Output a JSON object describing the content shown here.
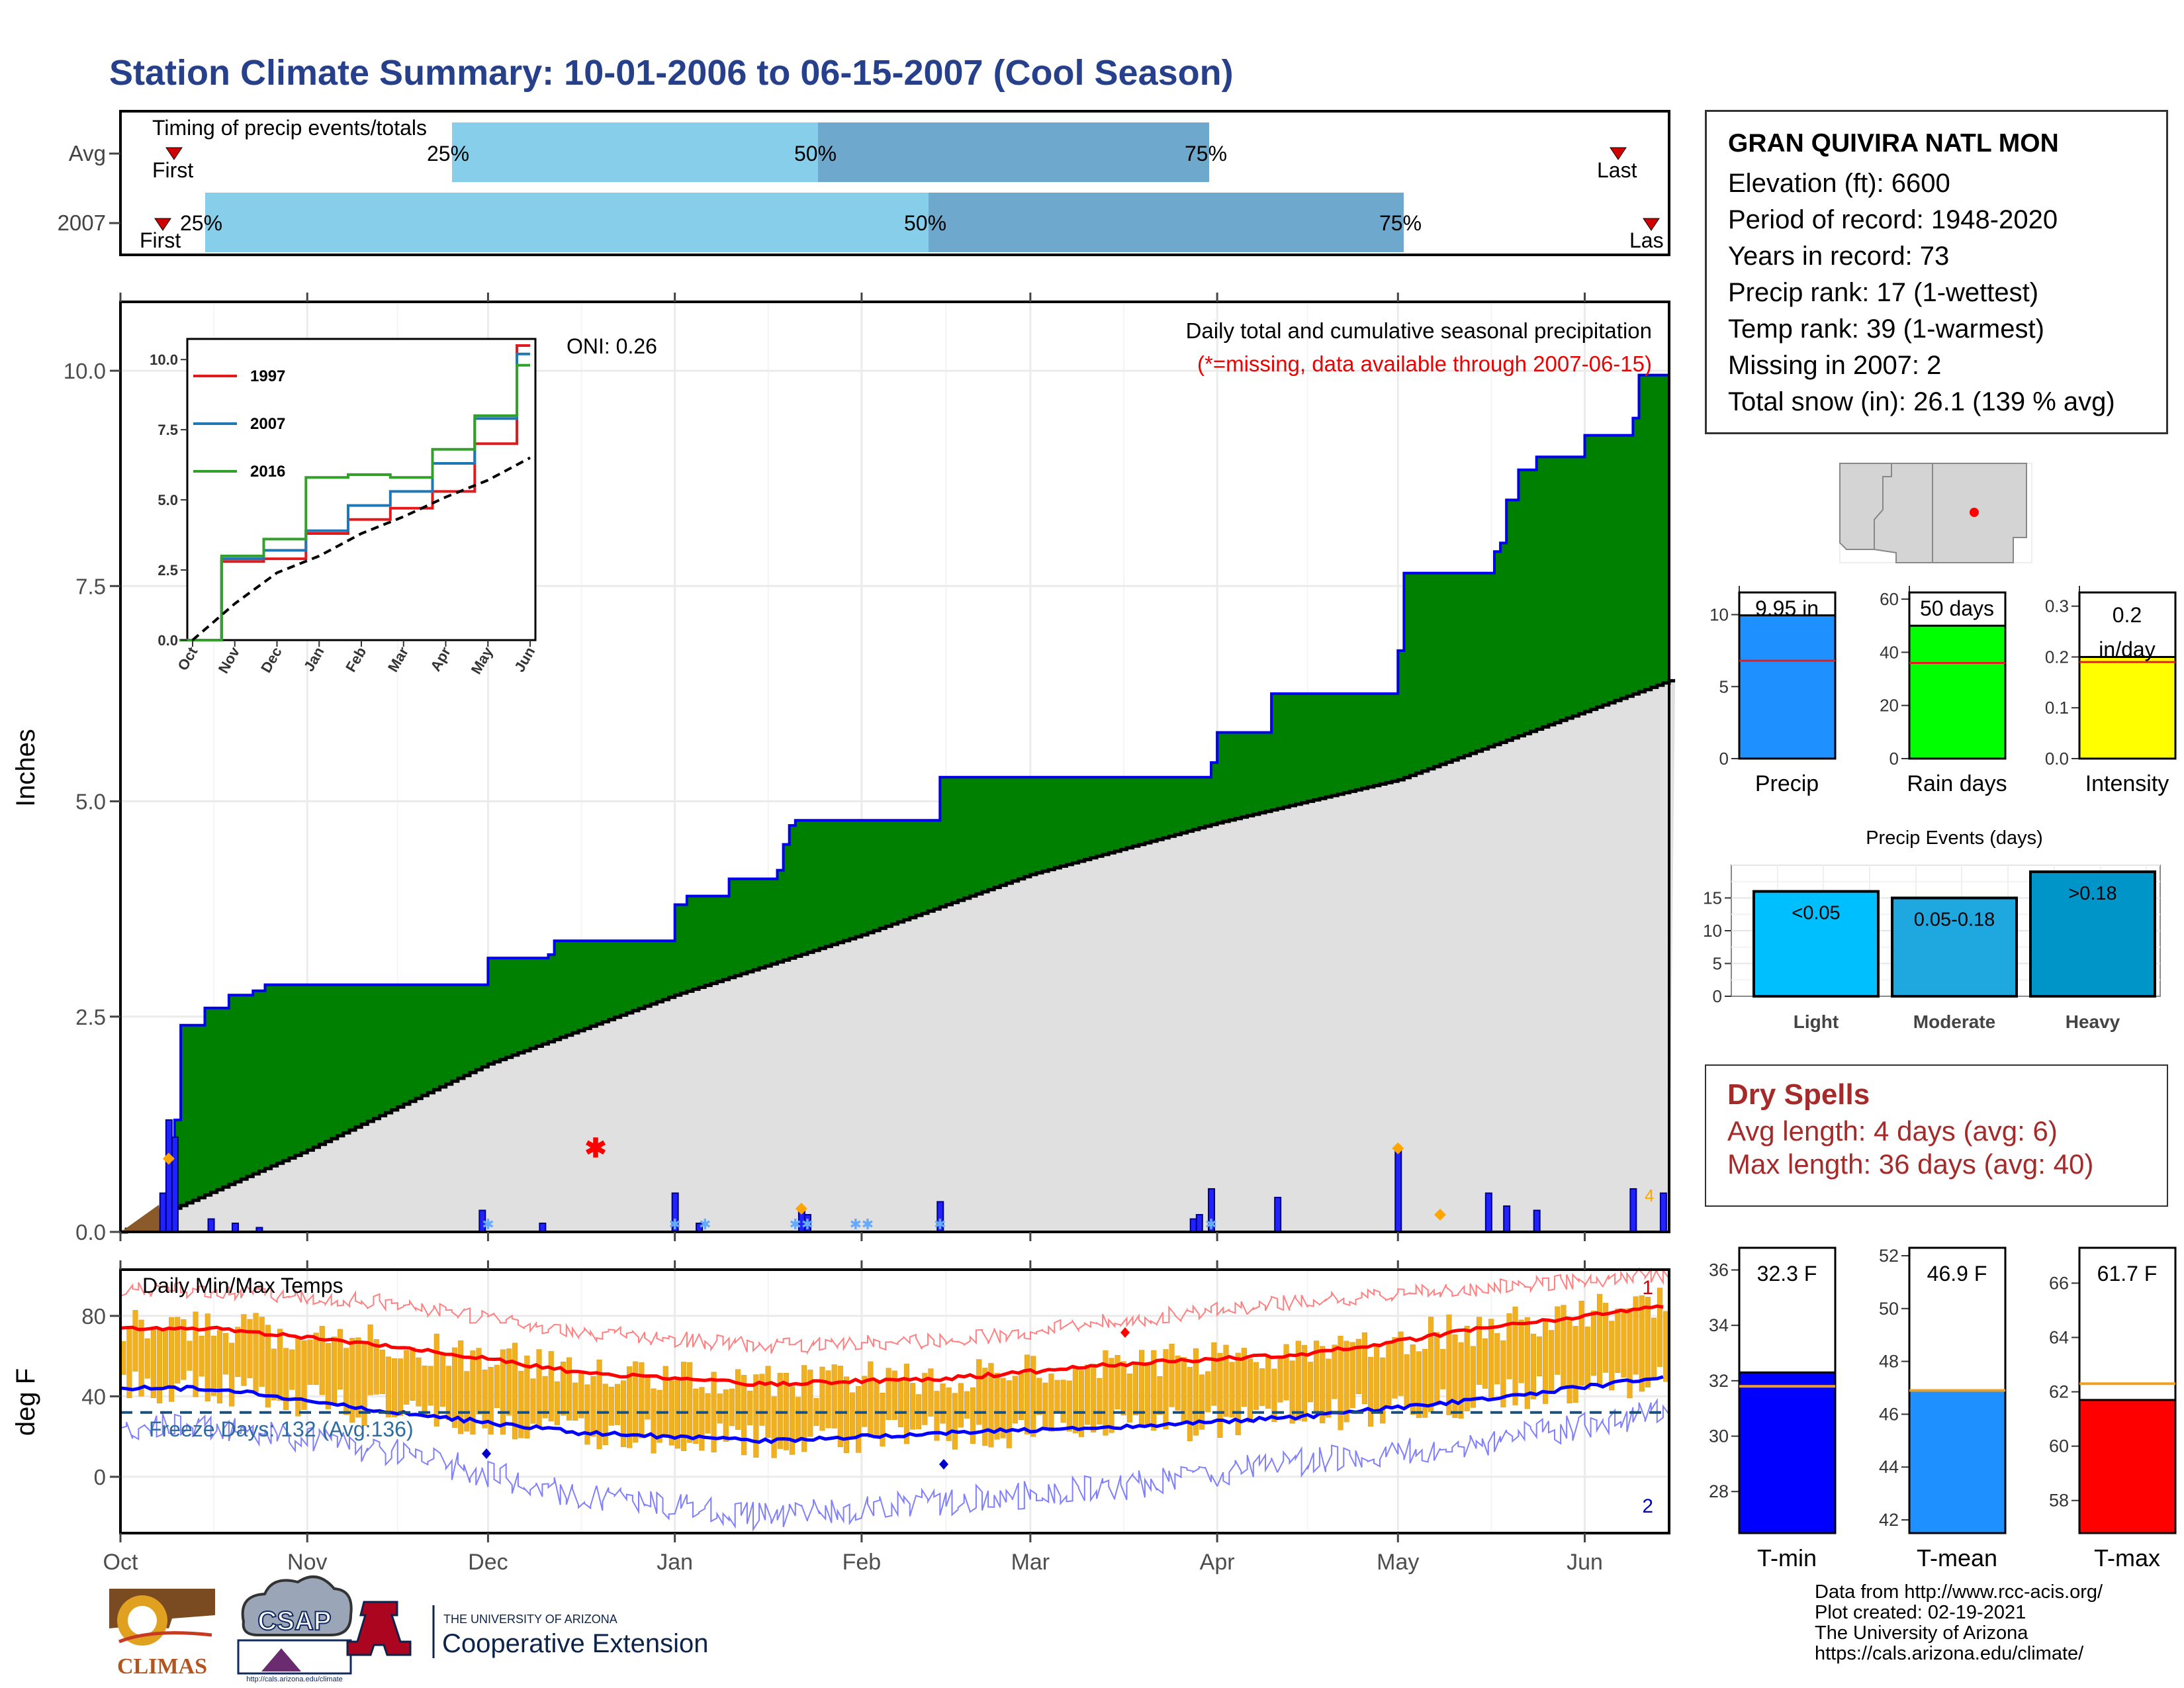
{
  "title": "Station Climate Summary: 10-01-2006 to 06-15-2007 (Cool Season)",
  "timing": {
    "title": "Timing of precip events/totals",
    "rows": [
      {
        "label": "Avg",
        "first_label": "First",
        "last_label": "Last",
        "p25": "25%",
        "p50": "50%",
        "p75": "75%"
      },
      {
        "label": "2007",
        "first_label": "First",
        "last_label": "Las",
        "p25": "25%",
        "p50": "50%",
        "p75": "75%"
      }
    ]
  },
  "main_chart": {
    "ylabel": "Inches",
    "y_ticks": [
      "0.0",
      "2.5",
      "5.0",
      "7.5",
      "10.0"
    ],
    "oni": "ONI: 0.26",
    "legend_line1": "Daily total and cumulative seasonal precipitation",
    "legend_line2": "(*=missing, data available through 2007-06-15)",
    "colors": {
      "cumulative_2007": "#008000",
      "average": "#e0e0e0",
      "daily": "#0000ff",
      "missing": "#ff0000",
      "snow": "#ffa500"
    }
  },
  "inset": {
    "y_ticks": [
      "0.0",
      "2.5",
      "5.0",
      "7.5",
      "10.0"
    ],
    "x_ticks": [
      "Oct",
      "Nov",
      "Dec",
      "Jan",
      "Feb",
      "Mar",
      "Apr",
      "May",
      "Jun"
    ],
    "legend": [
      {
        "name": "1997",
        "color": "#e31a1c"
      },
      {
        "name": "2007",
        "color": "#1f78b4"
      },
      {
        "name": "2016",
        "color": "#33a02c"
      }
    ]
  },
  "temp_chart": {
    "ylabel": "deg F",
    "title": "Daily Min/Max Temps",
    "y_ticks": [
      "0",
      "40",
      "80"
    ],
    "freeze": "Freeze Days: 132 (Avg:136)",
    "corner_top": "1",
    "corner_bottom": "2"
  },
  "x_axis": {
    "months": [
      "Oct",
      "Nov",
      "Dec",
      "Jan",
      "Feb",
      "Mar",
      "Apr",
      "May",
      "Jun"
    ]
  },
  "station": {
    "name": "GRAN QUIVIRA NATL MON",
    "lines": [
      "Elevation (ft): 6600",
      "Period of record: 1948-2020",
      "Years in record: 73",
      "Precip rank: 17 (1-wettest)",
      "Temp rank: 39 (1-warmest)",
      "Missing in 2007: 2",
      "Total snow (in): 26.1 (139 % avg)"
    ]
  },
  "mini_bars": [
    {
      "label": "Precip",
      "value_text": "9.95 in",
      "ticks": [
        "0",
        "5",
        "10"
      ],
      "color": "#1e90ff"
    },
    {
      "label": "Rain days",
      "value_text": "50 days",
      "ticks": [
        "0",
        "20",
        "40",
        "60"
      ],
      "color": "#00ff00"
    },
    {
      "label": "Intensity",
      "value_text_1": "0.2",
      "value_text_2": "in/day",
      "ticks": [
        "0.0",
        "0.1",
        "0.2",
        "0.3"
      ],
      "color": "#ffff00"
    }
  ],
  "events": {
    "title": "Precip Events (days)",
    "bars": [
      {
        "label": "Light",
        "value_text": "<0.05",
        "value": 16,
        "color": "#00bfff"
      },
      {
        "label": "Moderate",
        "value_text": "0.05-0.18",
        "value": 15,
        "color": "#1fa8e0"
      },
      {
        "label": "Heavy",
        "value_text": ">0.18",
        "value": 19,
        "color": "#0095c8"
      }
    ],
    "ticks": [
      "0",
      "5",
      "10",
      "15"
    ]
  },
  "dry_spells": {
    "title": "Dry Spells",
    "line1": "Avg length: 4 days (avg: 6)",
    "line2": "Max length: 36 days (avg: 40)"
  },
  "temp_bars": [
    {
      "label": "T-min",
      "value_text": "32.3 F",
      "ticks": [
        "28",
        "30",
        "32",
        "34",
        "36"
      ],
      "color": "#0000ff"
    },
    {
      "label": "T-mean",
      "value_text": "46.9 F",
      "ticks": [
        "42",
        "44",
        "46",
        "48",
        "50",
        "52"
      ],
      "color": "#1e90ff"
    },
    {
      "label": "T-max",
      "value_text": "61.7 F",
      "ticks": [
        "58",
        "60",
        "62",
        "64",
        "66"
      ],
      "color": "#ff0000"
    }
  ],
  "credits": [
    "Data from http://www.rcc-acis.org/",
    "Plot created: 02-19-2021",
    "The University of Arizona",
    "https://cals.arizona.edu/climate/"
  ],
  "logos": {
    "climas": "CLIMAS",
    "csap": "CSAP",
    "csap_url": "http://cals.arizona.edu/climate",
    "ua_line1": "THE UNIVERSITY OF ARIZONA",
    "ua_line2": "Cooperative Extension",
    "ua_letter": "A"
  },
  "chart_data": [
    {
      "type": "area",
      "title": "Daily total and cumulative seasonal precipitation",
      "ylabel": "Inches",
      "ylim": [
        0,
        10.8
      ],
      "x_start": "2006-10-01",
      "x_end": "2007-06-15",
      "series": [
        {
          "name": "2007",
          "x": [
            "2006-10-01",
            "2006-10-08",
            "2006-10-09",
            "2006-10-10",
            "2006-10-11",
            "2006-10-15",
            "2006-10-19",
            "2006-10-23",
            "2006-10-25",
            "2006-11-30",
            "2006-12-01",
            "2006-12-11",
            "2006-12-12",
            "2006-12-31",
            "2007-01-01",
            "2007-01-03",
            "2007-01-10",
            "2007-01-18",
            "2007-01-19",
            "2007-01-20",
            "2007-01-21",
            "2007-02-13",
            "2007-02-14",
            "2007-03-30",
            "2007-03-31",
            "2007-04-01",
            "2007-04-10",
            "2007-05-01",
            "2007-05-02",
            "2007-05-17",
            "2007-05-18",
            "2007-05-19",
            "2007-05-21",
            "2007-05-24",
            "2007-06-01",
            "2007-06-09",
            "2007-06-10",
            "2007-06-15"
          ],
          "values": [
            0.0,
            0.0,
            0.45,
            1.3,
            2.4,
            2.6,
            2.75,
            2.8,
            2.87,
            2.87,
            3.18,
            3.22,
            3.38,
            3.38,
            3.8,
            3.9,
            4.1,
            4.2,
            4.5,
            4.72,
            4.78,
            4.78,
            5.28,
            5.28,
            5.45,
            5.8,
            6.25,
            6.75,
            7.65,
            7.9,
            8.0,
            8.5,
            8.85,
            9.0,
            9.25,
            9.45,
            9.95,
            9.95
          ]
        },
        {
          "name": "Avg",
          "x": [
            "2006-10-01",
            "2006-11-01",
            "2006-12-01",
            "2007-01-01",
            "2007-02-01",
            "2007-03-01",
            "2007-04-01",
            "2007-05-01",
            "2007-06-15"
          ],
          "values": [
            0.0,
            0.95,
            1.95,
            2.75,
            3.45,
            4.15,
            4.75,
            5.25,
            6.4
          ]
        }
      ]
    },
    {
      "type": "bar",
      "title": "Daily precipitation",
      "x": [
        "2006-10-08",
        "2006-10-09",
        "2006-10-10",
        "2006-10-16",
        "2006-10-20",
        "2006-10-24",
        "2006-11-30",
        "2006-12-10",
        "2007-01-01",
        "2007-01-05",
        "2007-01-22",
        "2007-01-23",
        "2007-02-14",
        "2007-03-28",
        "2007-03-29",
        "2007-03-31",
        "2007-04-11",
        "2007-05-01",
        "2007-05-16",
        "2007-05-19",
        "2007-05-24",
        "2007-06-09",
        "2007-06-14"
      ],
      "values": [
        0.45,
        1.3,
        1.1,
        0.15,
        0.1,
        0.05,
        0.25,
        0.1,
        0.45,
        0.1,
        0.25,
        0.2,
        0.35,
        0.15,
        0.2,
        0.5,
        0.4,
        0.95,
        0.45,
        0.3,
        0.25,
        0.5,
        0.45
      ]
    },
    {
      "type": "line",
      "title": "Inset: cumulative precipitation of selected years",
      "x": [
        "Oct",
        "Nov",
        "Dec",
        "Jan",
        "Feb",
        "Mar",
        "Apr",
        "May",
        "Jun"
      ],
      "ylim": [
        0,
        10.5
      ],
      "series": [
        {
          "name": "1997",
          "values": [
            0.0,
            2.8,
            2.9,
            3.8,
            4.3,
            4.7,
            5.3,
            7.0,
            10.5
          ]
        },
        {
          "name": "2007",
          "values": [
            0.0,
            2.9,
            3.2,
            3.9,
            4.8,
            5.3,
            6.3,
            7.9,
            10.2
          ]
        },
        {
          "name": "2016",
          "values": [
            0.0,
            3.0,
            3.6,
            5.8,
            5.9,
            5.8,
            6.8,
            8.0,
            9.8
          ]
        },
        {
          "name": "Avg",
          "values": [
            0.0,
            1.3,
            2.4,
            3.0,
            3.8,
            4.4,
            5.1,
            5.7,
            6.5
          ]
        }
      ]
    },
    {
      "type": "line",
      "title": "Daily Min/Max Temps",
      "ylabel": "deg F",
      "ylim": [
        -28,
        103
      ],
      "x": [
        "Oct",
        "Nov",
        "Dec",
        "Jan",
        "Feb",
        "Mar",
        "Apr",
        "May",
        "Jun"
      ],
      "series": [
        {
          "name": "Avg max",
          "values": [
            74,
            65,
            52,
            46,
            49,
            56,
            61,
            74,
            86
          ]
        },
        {
          "name": "Avg min",
          "values": [
            44,
            32,
            22,
            18,
            22,
            25,
            30,
            39,
            50
          ]
        },
        {
          "name": "Record max",
          "values": [
            93,
            86,
            72,
            65,
            68,
            78,
            88,
            94,
            101
          ]
        },
        {
          "name": "Record min",
          "values": [
            25,
            12,
            -10,
            -20,
            -12,
            -5,
            8,
            18,
            33
          ]
        }
      ]
    },
    {
      "type": "bar",
      "title": "Seasonal summary bars",
      "categories": [
        "Precip",
        "Rain days",
        "Intensity",
        "T-min",
        "T-mean",
        "T-max"
      ],
      "values": [
        9.95,
        50,
        0.2,
        32.3,
        46.9,
        61.7
      ],
      "series": [
        {
          "name": "avg",
          "values": [
            6.8,
            36,
            0.19,
            31.8,
            46.9,
            62.3
          ]
        }
      ]
    },
    {
      "type": "bar",
      "title": "Precip Events (days)",
      "categories": [
        "Light",
        "Moderate",
        "Heavy"
      ],
      "values": [
        16,
        15,
        19
      ]
    }
  ]
}
